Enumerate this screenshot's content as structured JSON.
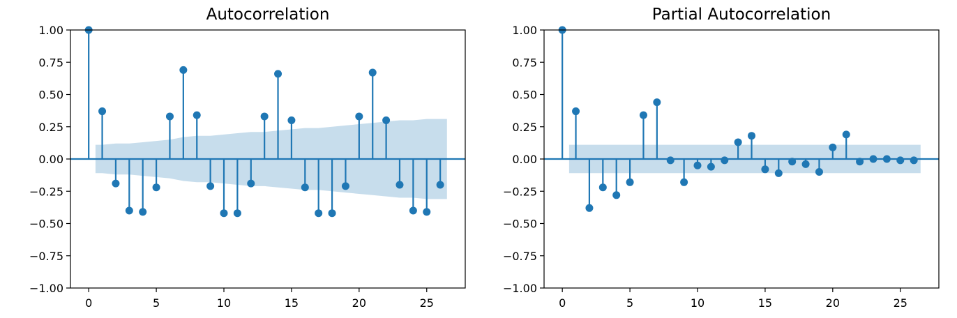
{
  "colors": {
    "stem": "#1f77b4",
    "band": "#1f77b4",
    "axis": "#000000"
  },
  "chart_data": [
    {
      "type": "stem",
      "title": "Autocorrelation",
      "xlabel": "",
      "ylabel": "",
      "xlim": [
        -1.35,
        27.85
      ],
      "ylim": [
        -1.0,
        1.0
      ],
      "xticks": [
        0,
        5,
        10,
        15,
        20,
        25
      ],
      "yticks": [
        -1.0,
        -0.75,
        -0.5,
        -0.25,
        0.0,
        0.25,
        0.5,
        0.75,
        1.0
      ],
      "ytick_labels": [
        "−1.00",
        "−0.75",
        "−0.50",
        "−0.25",
        "0.00",
        "0.25",
        "0.50",
        "0.75",
        "1.00"
      ],
      "xtick_labels": [
        "0",
        "5",
        "10",
        "15",
        "20",
        "25"
      ],
      "lags": [
        0,
        1,
        2,
        3,
        4,
        5,
        6,
        7,
        8,
        9,
        10,
        11,
        12,
        13,
        14,
        15,
        16,
        17,
        18,
        19,
        20,
        21,
        22,
        23,
        24,
        25,
        26
      ],
      "values": [
        1.0,
        0.37,
        -0.19,
        -0.4,
        -0.41,
        -0.22,
        0.33,
        0.69,
        0.34,
        -0.21,
        -0.42,
        -0.42,
        -0.19,
        0.33,
        0.66,
        0.3,
        -0.22,
        -0.42,
        -0.42,
        -0.21,
        0.33,
        0.67,
        0.3,
        -0.2,
        -0.4,
        -0.41,
        -0.2
      ],
      "confidence_band": {
        "lags": [
          0.5,
          1,
          2,
          3,
          4,
          5,
          6,
          7,
          8,
          9,
          10,
          11,
          12,
          13,
          14,
          15,
          16,
          17,
          18,
          19,
          20,
          21,
          22,
          23,
          24,
          25,
          26,
          26.5
        ],
        "upper": [
          0.11,
          0.11,
          0.12,
          0.12,
          0.13,
          0.14,
          0.15,
          0.17,
          0.18,
          0.18,
          0.19,
          0.2,
          0.21,
          0.21,
          0.22,
          0.23,
          0.24,
          0.24,
          0.25,
          0.26,
          0.27,
          0.28,
          0.29,
          0.3,
          0.3,
          0.31,
          0.31,
          0.31
        ]
      },
      "grid": false,
      "legend": "none"
    },
    {
      "type": "stem",
      "title": "Partial Autocorrelation",
      "xlabel": "",
      "ylabel": "",
      "xlim": [
        -1.35,
        27.85
      ],
      "ylim": [
        -1.0,
        1.0
      ],
      "xticks": [
        0,
        5,
        10,
        15,
        20,
        25
      ],
      "yticks": [
        -1.0,
        -0.75,
        -0.5,
        -0.25,
        0.0,
        0.25,
        0.5,
        0.75,
        1.0
      ],
      "ytick_labels": [
        "−1.00",
        "−0.75",
        "−0.50",
        "−0.25",
        "0.00",
        "0.25",
        "0.50",
        "0.75",
        "1.00"
      ],
      "xtick_labels": [
        "0",
        "5",
        "10",
        "15",
        "20",
        "25"
      ],
      "lags": [
        0,
        1,
        2,
        3,
        4,
        5,
        6,
        7,
        8,
        9,
        10,
        11,
        12,
        13,
        14,
        15,
        16,
        17,
        18,
        19,
        20,
        21,
        22,
        23,
        24,
        25,
        26
      ],
      "values": [
        1.0,
        0.37,
        -0.38,
        -0.22,
        -0.28,
        -0.18,
        0.34,
        0.44,
        -0.01,
        -0.18,
        -0.05,
        -0.06,
        -0.01,
        0.13,
        0.18,
        -0.08,
        -0.11,
        -0.02,
        -0.04,
        -0.1,
        0.09,
        0.19,
        -0.02,
        0.0,
        0.0,
        -0.01,
        -0.01
      ],
      "confidence_band": {
        "lags": [
          0.5,
          26.5
        ],
        "upper": [
          0.11,
          0.11
        ]
      },
      "grid": false,
      "legend": "none"
    }
  ]
}
